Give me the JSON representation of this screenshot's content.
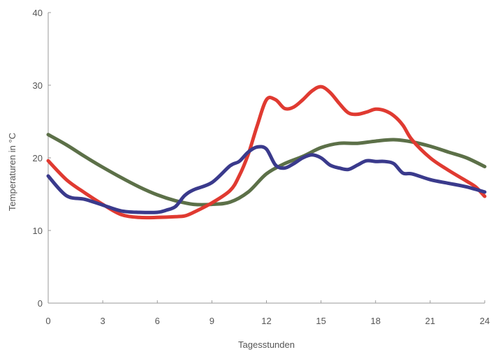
{
  "chart_data": {
    "type": "line",
    "xlabel": "Tagesstunden",
    "ylabel": "Temperaturen in °C",
    "xlim": [
      0,
      24
    ],
    "ylim": [
      0,
      40
    ],
    "xticks": [
      "0",
      "3",
      "6",
      "9",
      "12",
      "15",
      "18",
      "21",
      "24"
    ],
    "yticks": [
      "0",
      "10",
      "20",
      "30",
      "40"
    ],
    "grid": false,
    "legend": "none",
    "series": [
      {
        "color": "#5c7048",
        "x": [
          0,
          1,
          2,
          3,
          4,
          5,
          6,
          7,
          8,
          9,
          10,
          11,
          12,
          13,
          14,
          15,
          16,
          17,
          18,
          19,
          20,
          21,
          22,
          23,
          24
        ],
        "y": [
          23.2,
          21.8,
          20.2,
          18.7,
          17.3,
          16.0,
          14.9,
          14.1,
          13.6,
          13.6,
          13.9,
          15.3,
          17.8,
          19.2,
          20.2,
          21.4,
          22.0,
          22.0,
          22.3,
          22.5,
          22.2,
          21.6,
          20.8,
          20.0,
          18.8
        ]
      },
      {
        "color": "#e03a31",
        "x": [
          0,
          1,
          2,
          3,
          4,
          5,
          6,
          7,
          7.5,
          8,
          9,
          10,
          10.5,
          11,
          11.5,
          12,
          12.5,
          13,
          13.5,
          14,
          14.5,
          15,
          15.5,
          16,
          16.5,
          17,
          17.5,
          18,
          18.5,
          19,
          19.5,
          20,
          21,
          22,
          23,
          23.5,
          24
        ],
        "y": [
          19.6,
          17.0,
          15.2,
          13.6,
          12.2,
          11.8,
          11.8,
          11.9,
          12.0,
          12.5,
          13.8,
          15.5,
          17.5,
          20.5,
          24.5,
          28.0,
          28.0,
          26.8,
          27.0,
          28.0,
          29.2,
          29.8,
          29.0,
          27.5,
          26.2,
          26.0,
          26.3,
          26.7,
          26.5,
          25.8,
          24.5,
          22.5,
          20.0,
          18.3,
          16.8,
          16.0,
          14.7
        ]
      },
      {
        "color": "#3a3a8c",
        "x": [
          0,
          1,
          2,
          3,
          4,
          5,
          6,
          6.5,
          7,
          7.5,
          8,
          9,
          10,
          10.5,
          11,
          11.5,
          12,
          12.5,
          13,
          13.5,
          14,
          14.5,
          15,
          15.5,
          16,
          16.5,
          17,
          17.5,
          18,
          18.5,
          19,
          19.5,
          20,
          21,
          22,
          23,
          24
        ],
        "y": [
          17.5,
          14.8,
          14.3,
          13.5,
          12.7,
          12.5,
          12.5,
          12.8,
          13.3,
          14.8,
          15.6,
          16.6,
          18.9,
          19.5,
          20.8,
          21.5,
          21.2,
          19.0,
          18.6,
          19.2,
          20.0,
          20.4,
          20.0,
          19.0,
          18.6,
          18.4,
          19.0,
          19.6,
          19.5,
          19.5,
          19.2,
          17.9,
          17.8,
          17.0,
          16.5,
          16.0,
          15.3
        ]
      }
    ]
  }
}
